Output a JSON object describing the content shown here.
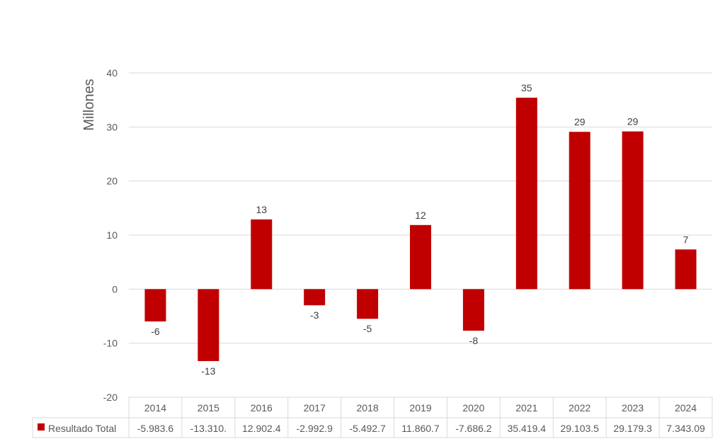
{
  "chart_data": {
    "type": "bar",
    "title": "",
    "xlabel": "",
    "ylabel": "Millones",
    "ylim": [
      -20,
      40
    ],
    "yticks": [
      -20,
      -10,
      0,
      10,
      20,
      30,
      40
    ],
    "grid": true,
    "legend": "data-table-left",
    "categories": [
      "2014",
      "2015",
      "2016",
      "2017",
      "2018",
      "2019",
      "2020",
      "2021",
      "2022",
      "2023",
      "2024"
    ],
    "series": [
      {
        "name": "Resultado Total",
        "color": "#c00000",
        "values": [
          -5.98,
          -13.31,
          12.9,
          -2.99,
          -5.49,
          11.86,
          -7.69,
          35.42,
          29.1,
          29.18,
          7.34
        ],
        "data_labels": [
          "-6",
          "-13",
          "13",
          "-3",
          "-5",
          "12",
          "-8",
          "35",
          "29",
          "29",
          "7"
        ],
        "table_values": [
          "-5.983.6",
          "-13.310.",
          "12.902.4",
          "-2.992.9",
          "-5.492.7",
          "11.860.7",
          "-7.686.2",
          "35.419.4",
          "29.103.5",
          "29.179.3",
          "7.343.09"
        ]
      }
    ]
  }
}
